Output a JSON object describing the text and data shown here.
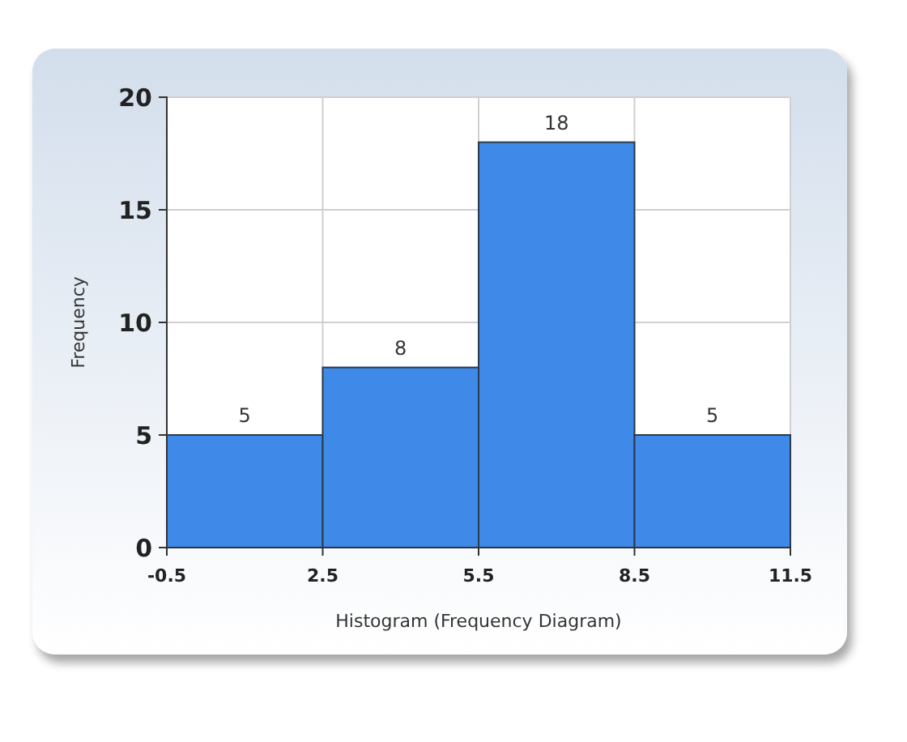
{
  "chart_data": {
    "type": "histogram",
    "xlabel": "Histogram (Frequency Diagram)",
    "ylabel": "Frequency",
    "bins": [
      -0.5,
      2.5,
      5.5,
      8.5,
      11.5
    ],
    "values": [
      5,
      8,
      18,
      5
    ],
    "color": "#3f8ae9",
    "xlim": [
      -0.5,
      11.5
    ],
    "xticks": [
      -0.5,
      2.5,
      5.5,
      8.5,
      11.5
    ],
    "ylim": [
      0,
      20
    ],
    "yticks": [
      0,
      5,
      10,
      15,
      20
    ],
    "grid": true,
    "data_labels": true
  }
}
